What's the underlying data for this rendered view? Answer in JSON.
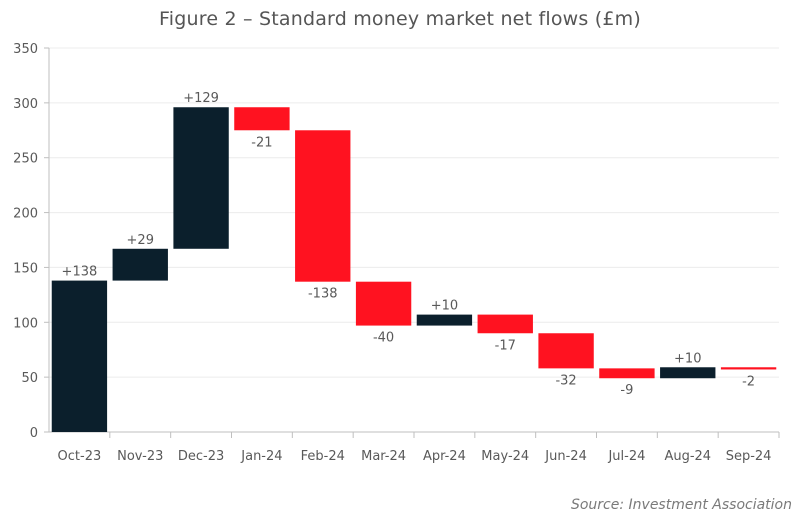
{
  "title": "Figure 2 – Standard money market net flows (£m)",
  "source": "Source: Investment Association",
  "colors": {
    "increase": "#0b1f2c",
    "decrease": "#ff1220",
    "axis": "#bfbfbf",
    "grid": "#ececec",
    "text": "#595959"
  },
  "chart_data": {
    "type": "bar",
    "subtype": "waterfall",
    "title": "Figure 2 – Standard money market net flows (£m)",
    "xlabel": "",
    "ylabel": "",
    "ylim": [
      0,
      350
    ],
    "yticks": [
      0,
      50,
      100,
      150,
      200,
      250,
      300,
      350
    ],
    "grid": true,
    "categories": [
      "Oct-23",
      "Nov-23",
      "Dec-23",
      "Jan-24",
      "Feb-24",
      "Mar-24",
      "Apr-24",
      "May-24",
      "Jun-24",
      "Jul-24",
      "Aug-24",
      "Sep-24"
    ],
    "values": [
      138,
      29,
      129,
      -21,
      -138,
      -40,
      10,
      -17,
      -32,
      -9,
      10,
      -2
    ],
    "data_labels": [
      "+138",
      "+29",
      "+129",
      "-21",
      "-138",
      "-40",
      "+10",
      "-17",
      "-32",
      "-9",
      "+10",
      "-2"
    ]
  }
}
